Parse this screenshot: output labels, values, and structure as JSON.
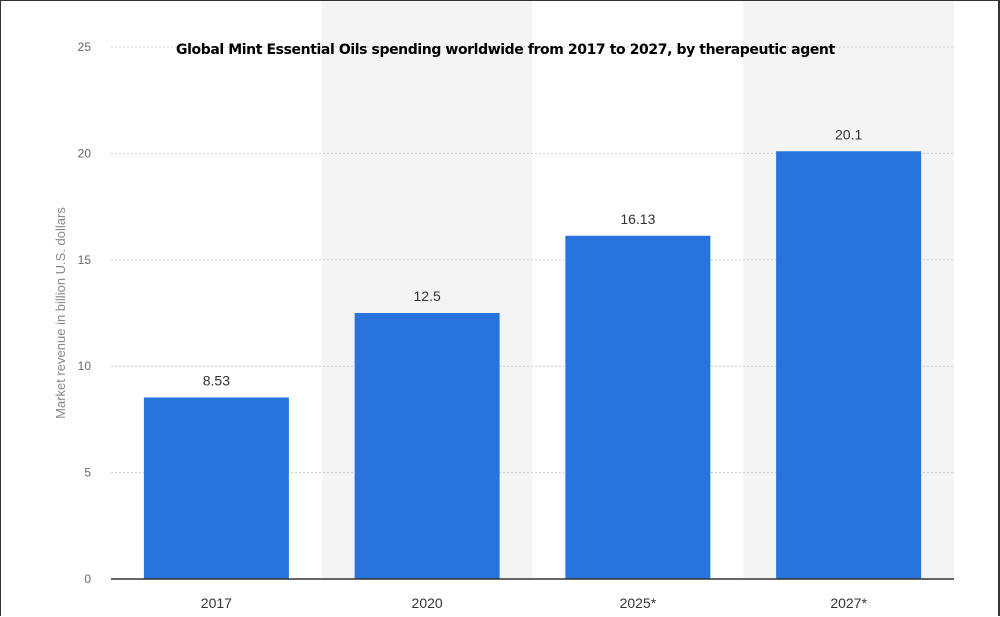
{
  "chart_data": {
    "type": "bar",
    "title": "Global Mint Essential Oils spending worldwide from 2017 to 2027, by therapeutic agent",
    "ylabel": "Market revenue in billion U.S. dollars",
    "xlabel": "",
    "categories": [
      "2017",
      "2020",
      "2025*",
      "2027*"
    ],
    "values": [
      8.53,
      12.5,
      16.13,
      20.1
    ],
    "value_labels": [
      "8.53",
      "12.5",
      "16.13",
      "20.1"
    ],
    "ylim": [
      0,
      25
    ],
    "yticks": [
      0,
      5,
      10,
      15,
      20,
      25
    ],
    "grid": true,
    "legend": "none",
    "colors": {
      "bar": "#2874dc",
      "band": "#f4f4f4",
      "grid": "#cccccc",
      "axis": "#333333"
    }
  }
}
